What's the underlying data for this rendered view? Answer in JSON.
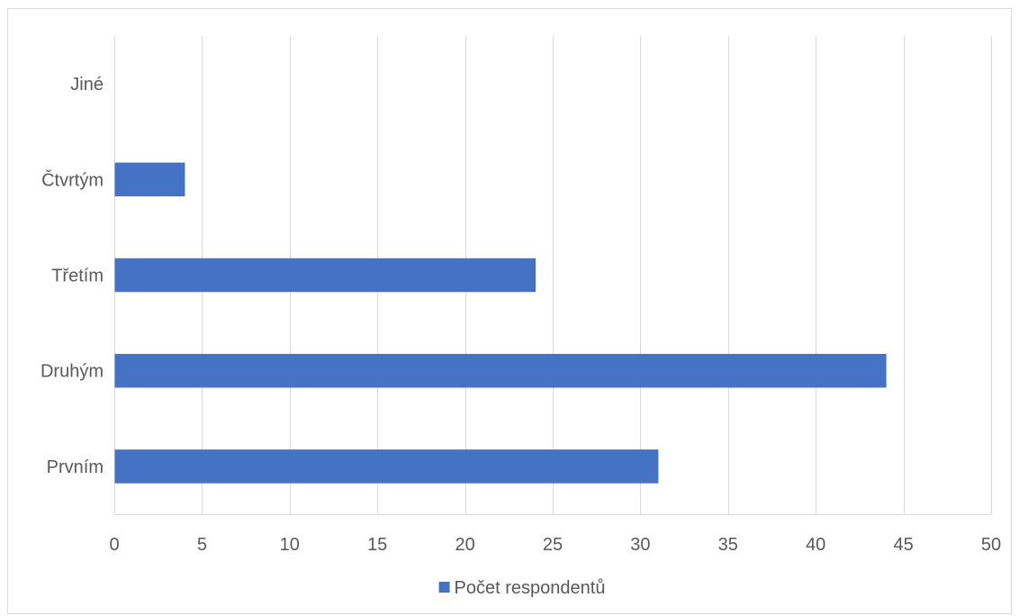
{
  "chart_data": {
    "type": "bar",
    "orientation": "horizontal",
    "categories": [
      "Prvním",
      "Druhým",
      "Třetím",
      "Čtvrtým",
      "Jiné"
    ],
    "series": [
      {
        "name": "Počet respondentů",
        "values": [
          31,
          44,
          24,
          4,
          0
        ],
        "color": "#4472C4"
      }
    ],
    "xlim": [
      0,
      50
    ],
    "x_ticks": [
      0,
      5,
      10,
      15,
      20,
      25,
      30,
      35,
      40,
      45,
      50
    ],
    "grid": "vertical",
    "legend": "bottom",
    "colors": {
      "text": "#595959",
      "grid": "#D9D9D9",
      "border": "#D9D9D9"
    }
  }
}
